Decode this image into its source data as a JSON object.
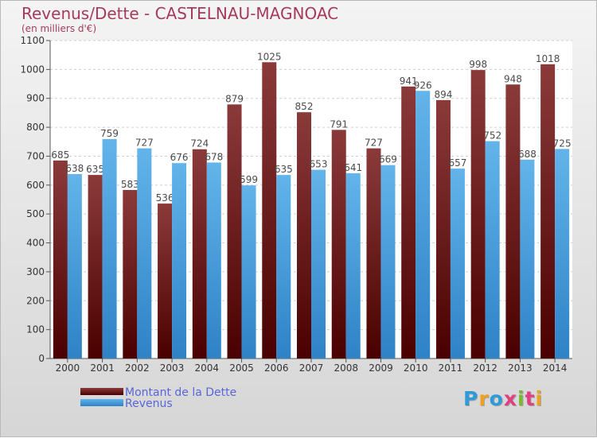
{
  "title": "Revenus/Dette - CASTELNAU-MAGNOAC",
  "subtitle": "(en milliers d'€)",
  "brand": {
    "text": "Proxiti",
    "letter_colors": [
      "#2e9ad8",
      "#f0a020",
      "#2e9ad8",
      "#e04080",
      "#78b832",
      "#e04080",
      "#f0a020"
    ]
  },
  "colors": {
    "dette_top": "#8b3a3a",
    "dette_bottom": "#4a0000",
    "revenus_top": "#62b4ea",
    "revenus_bottom": "#2e82c6",
    "label": "#4a4a4a",
    "title": "#a63a5a"
  },
  "chart_data": {
    "type": "bar",
    "categories": [
      "2000",
      "2001",
      "2002",
      "2003",
      "2004",
      "2005",
      "2006",
      "2007",
      "2008",
      "2009",
      "2010",
      "2011",
      "2012",
      "2013",
      "2014"
    ],
    "series": [
      {
        "name": "Montant de la Dette",
        "values": [
          685,
          635,
          583,
          536,
          724,
          879,
          1025,
          852,
          791,
          727,
          941,
          894,
          998,
          948,
          1018
        ]
      },
      {
        "name": "Revenus",
        "values": [
          638,
          759,
          727,
          676,
          678,
          599,
          635,
          653,
          641,
          669,
          926,
          657,
          752,
          688,
          725
        ]
      }
    ],
    "ylim": [
      0,
      1100
    ],
    "yticks": [
      0,
      100,
      200,
      300,
      400,
      500,
      600,
      700,
      800,
      900,
      1000,
      1100
    ],
    "grid": true,
    "legend_position": "bottom-left",
    "data_labels": true
  }
}
